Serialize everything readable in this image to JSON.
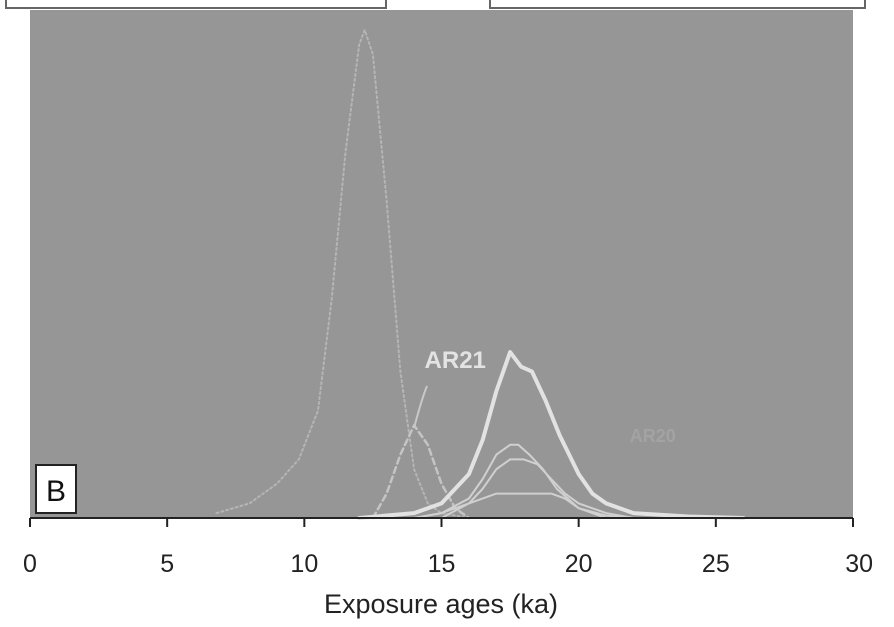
{
  "chart_data": {
    "type": "line",
    "panel_label": "B",
    "xlabel": "Exposure ages (ka)",
    "ylabel": "",
    "xlim": [
      0,
      30
    ],
    "xticks": [
      "0",
      "5",
      "10",
      "15",
      "20",
      "25",
      "30"
    ],
    "grid": false,
    "annotations": [
      {
        "text": "AR21",
        "x": 15.5
      },
      {
        "text": "AR20",
        "x": 22.7
      }
    ],
    "series": [
      {
        "style": "dotted",
        "color": "#b5b5b5",
        "x": [
          6.8,
          8,
          9,
          9.8,
          10.5,
          11,
          11.5,
          12,
          12.2,
          12.5,
          13,
          13.5,
          14,
          14.5,
          15,
          16
        ],
        "y": [
          0.01,
          0.03,
          0.07,
          0.12,
          0.22,
          0.45,
          0.75,
          0.97,
          1.0,
          0.95,
          0.65,
          0.3,
          0.1,
          0.03,
          0.01,
          0.0
        ]
      },
      {
        "style": "dashed",
        "color": "#c4c4c4",
        "x": [
          12.5,
          13,
          13.5,
          14,
          14.5,
          15,
          15.5,
          16
        ],
        "y": [
          0.0,
          0.05,
          0.13,
          0.19,
          0.15,
          0.07,
          0.02,
          0.0
        ]
      },
      {
        "style": "solid-thick",
        "color": "#e2e2e2",
        "x": [
          12,
          14,
          15,
          16,
          16.5,
          17,
          17.5,
          17.9,
          18.3,
          18.8,
          19.3,
          20,
          20.5,
          21,
          22,
          24,
          26
        ],
        "y": [
          0.0,
          0.01,
          0.03,
          0.09,
          0.16,
          0.26,
          0.34,
          0.31,
          0.3,
          0.24,
          0.17,
          0.09,
          0.05,
          0.03,
          0.01,
          0.003,
          0.0
        ]
      },
      {
        "style": "solid",
        "color": "#d0d0d0",
        "x": [
          14,
          15,
          16,
          16.5,
          17,
          17.5,
          17.8,
          18.2,
          18.7,
          19.2,
          20,
          21,
          22
        ],
        "y": [
          0.0,
          0.01,
          0.04,
          0.08,
          0.13,
          0.15,
          0.15,
          0.13,
          0.1,
          0.06,
          0.02,
          0.005,
          0.0
        ]
      },
      {
        "style": "solid",
        "color": "#d0d0d0",
        "x": [
          14,
          15,
          16,
          16.5,
          17,
          17.5,
          18,
          18.5,
          19,
          19.5,
          20,
          21,
          22
        ],
        "y": [
          0.0,
          0.01,
          0.03,
          0.06,
          0.1,
          0.12,
          0.12,
          0.11,
          0.08,
          0.05,
          0.03,
          0.01,
          0.0
        ]
      },
      {
        "style": "solid",
        "color": "#d0d0d0",
        "x": [
          15,
          16,
          17,
          18,
          19,
          19.5,
          20,
          21
        ],
        "y": [
          0.0,
          0.03,
          0.05,
          0.05,
          0.05,
          0.04,
          0.02,
          0.0
        ]
      }
    ]
  }
}
